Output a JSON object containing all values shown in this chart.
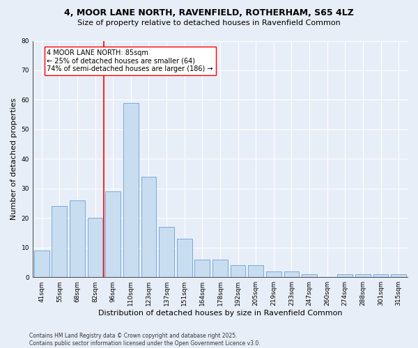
{
  "title1": "4, MOOR LANE NORTH, RAVENFIELD, ROTHERHAM, S65 4LZ",
  "title2": "Size of property relative to detached houses in Ravenfield Common",
  "xlabel": "Distribution of detached houses by size in Ravenfield Common",
  "ylabel": "Number of detached properties",
  "categories": [
    "41sqm",
    "55sqm",
    "68sqm",
    "82sqm",
    "96sqm",
    "110sqm",
    "123sqm",
    "137sqm",
    "151sqm",
    "164sqm",
    "178sqm",
    "192sqm",
    "205sqm",
    "219sqm",
    "233sqm",
    "247sqm",
    "260sqm",
    "274sqm",
    "288sqm",
    "301sqm",
    "315sqm"
  ],
  "values": [
    9,
    24,
    26,
    20,
    29,
    59,
    34,
    17,
    13,
    6,
    6,
    4,
    4,
    2,
    2,
    1,
    0,
    1,
    1,
    1,
    1
  ],
  "bar_color": "#c9ddf0",
  "bar_edge_color": "#6a9fd8",
  "ylim": [
    0,
    80
  ],
  "yticks": [
    0,
    10,
    20,
    30,
    40,
    50,
    60,
    70,
    80
  ],
  "annotation_text": "4 MOOR LANE NORTH: 85sqm\n← 25% of detached houses are smaller (64)\n74% of semi-detached houses are larger (186) →",
  "vline_x": 3.5,
  "footer": "Contains HM Land Registry data © Crown copyright and database right 2025.\nContains public sector information licensed under the Open Government Licence v3.0.",
  "background_color": "#e8eef8",
  "grid_color": "#ffffff",
  "title_fontsize": 9,
  "subtitle_fontsize": 8,
  "tick_fontsize": 6.5,
  "ylabel_fontsize": 8,
  "xlabel_fontsize": 8,
  "footer_fontsize": 5.5,
  "ann_fontsize": 7
}
